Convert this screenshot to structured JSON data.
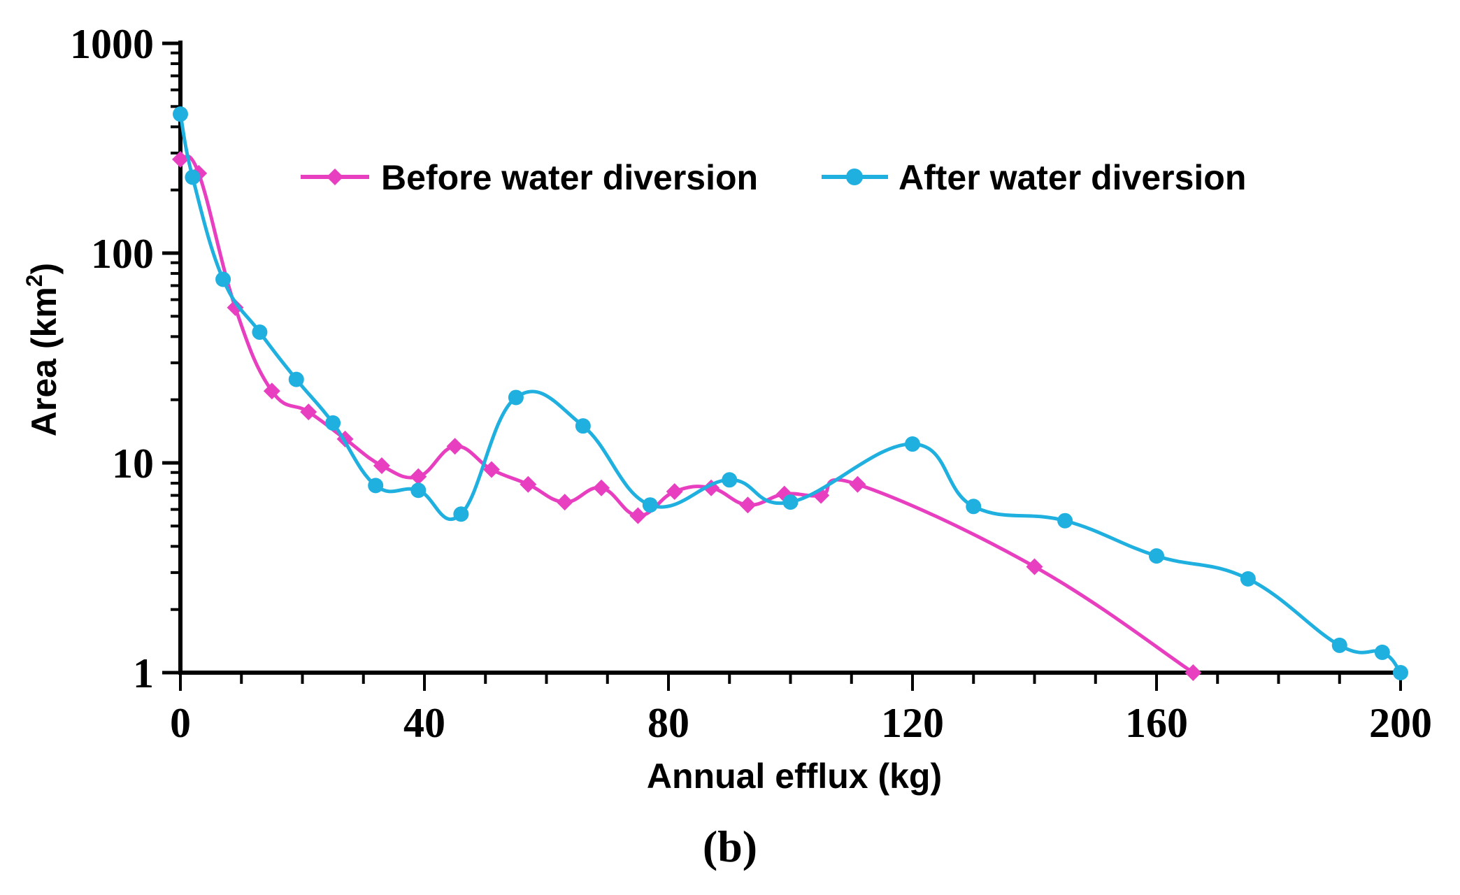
{
  "chart_data": {
    "type": "line",
    "title": "",
    "panel_label": "(b)",
    "xlabel": "Annual efflux (kg)",
    "ylabel_main": "Area (km",
    "ylabel_sup": "2",
    "ylabel_close": ")",
    "xlim": [
      0,
      200
    ],
    "ylim": [
      1,
      1000
    ],
    "yscale": "log",
    "x_ticks": [
      0,
      40,
      80,
      120,
      160,
      200
    ],
    "x_tick_labels": [
      "0",
      "40",
      "80",
      "120",
      "160",
      "200"
    ],
    "y_ticks": [
      1,
      10,
      100,
      1000
    ],
    "y_tick_labels": [
      "1",
      "10",
      "100",
      "1000"
    ],
    "legend_position": "top",
    "series": [
      {
        "name": "Before water diversion",
        "color": "#e83fc0",
        "marker": "diamond",
        "x": [
          0,
          3,
          9,
          15,
          21,
          27,
          33,
          39,
          45,
          51,
          57,
          63,
          69,
          75,
          81,
          87,
          93,
          99,
          105,
          111,
          140,
          166
        ],
        "y": [
          280,
          240,
          55,
          22,
          17.5,
          13,
          9.7,
          8.6,
          12,
          9.3,
          7.9,
          6.5,
          7.6,
          5.6,
          7.3,
          7.6,
          6.3,
          7.1,
          7.0,
          7.9,
          3.2,
          1.0
        ]
      },
      {
        "name": "After water diversion",
        "color": "#1fb0e0",
        "marker": "circle",
        "x": [
          0,
          2,
          7,
          13,
          19,
          25,
          32,
          39,
          46,
          55,
          66,
          77,
          90,
          100,
          120,
          130,
          145,
          160,
          175,
          190,
          197,
          200
        ],
        "y": [
          460,
          230,
          75,
          42,
          25,
          15.5,
          7.8,
          7.4,
          5.7,
          20.5,
          15,
          6.3,
          8.3,
          6.5,
          12.3,
          6.2,
          5.3,
          3.6,
          2.8,
          1.35,
          1.25,
          1.0
        ]
      }
    ]
  }
}
